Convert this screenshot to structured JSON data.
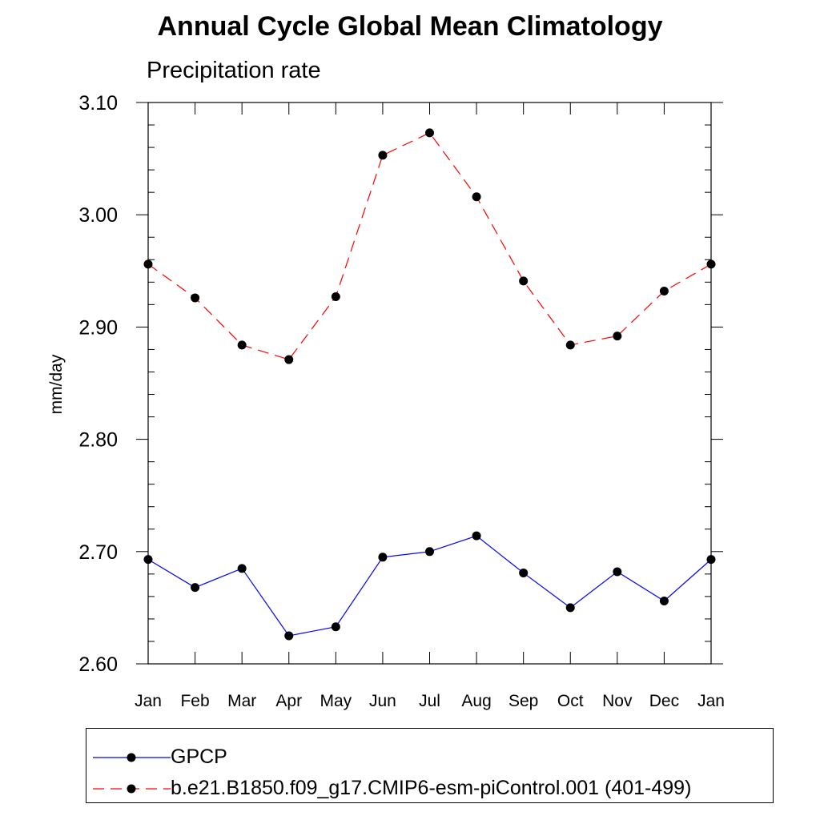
{
  "chart_data": {
    "type": "line",
    "title": "Annual Cycle Global Mean Climatology",
    "subtitle": "Precipitation rate",
    "xlabel": "",
    "ylabel": "mm/day",
    "categories": [
      "Jan",
      "Feb",
      "Mar",
      "Apr",
      "May",
      "Jun",
      "Jul",
      "Aug",
      "Sep",
      "Oct",
      "Nov",
      "Dec",
      "Jan"
    ],
    "yticks": [
      "2.60",
      "2.70",
      "2.80",
      "2.90",
      "3.00",
      "3.10"
    ],
    "ylim": [
      2.6,
      3.1
    ],
    "grid": false,
    "legend_position": "bottom",
    "series": [
      {
        "name": "GPCP",
        "color": "#0000ff",
        "dash": "solid",
        "marker": "filled-circle",
        "values": [
          2.693,
          2.668,
          2.685,
          2.625,
          2.633,
          2.695,
          2.7,
          2.714,
          2.681,
          2.65,
          2.682,
          2.656,
          2.693
        ]
      },
      {
        "name": "b.e21.B1850.f09_g17.CMIP6-esm-piControl.001 (401-499)",
        "color": "#ff0000",
        "dash": "dashed",
        "marker": "filled-circle",
        "values": [
          2.956,
          2.926,
          2.884,
          2.871,
          2.927,
          3.053,
          3.073,
          3.016,
          2.941,
          2.884,
          2.892,
          2.932,
          2.956
        ]
      }
    ]
  }
}
